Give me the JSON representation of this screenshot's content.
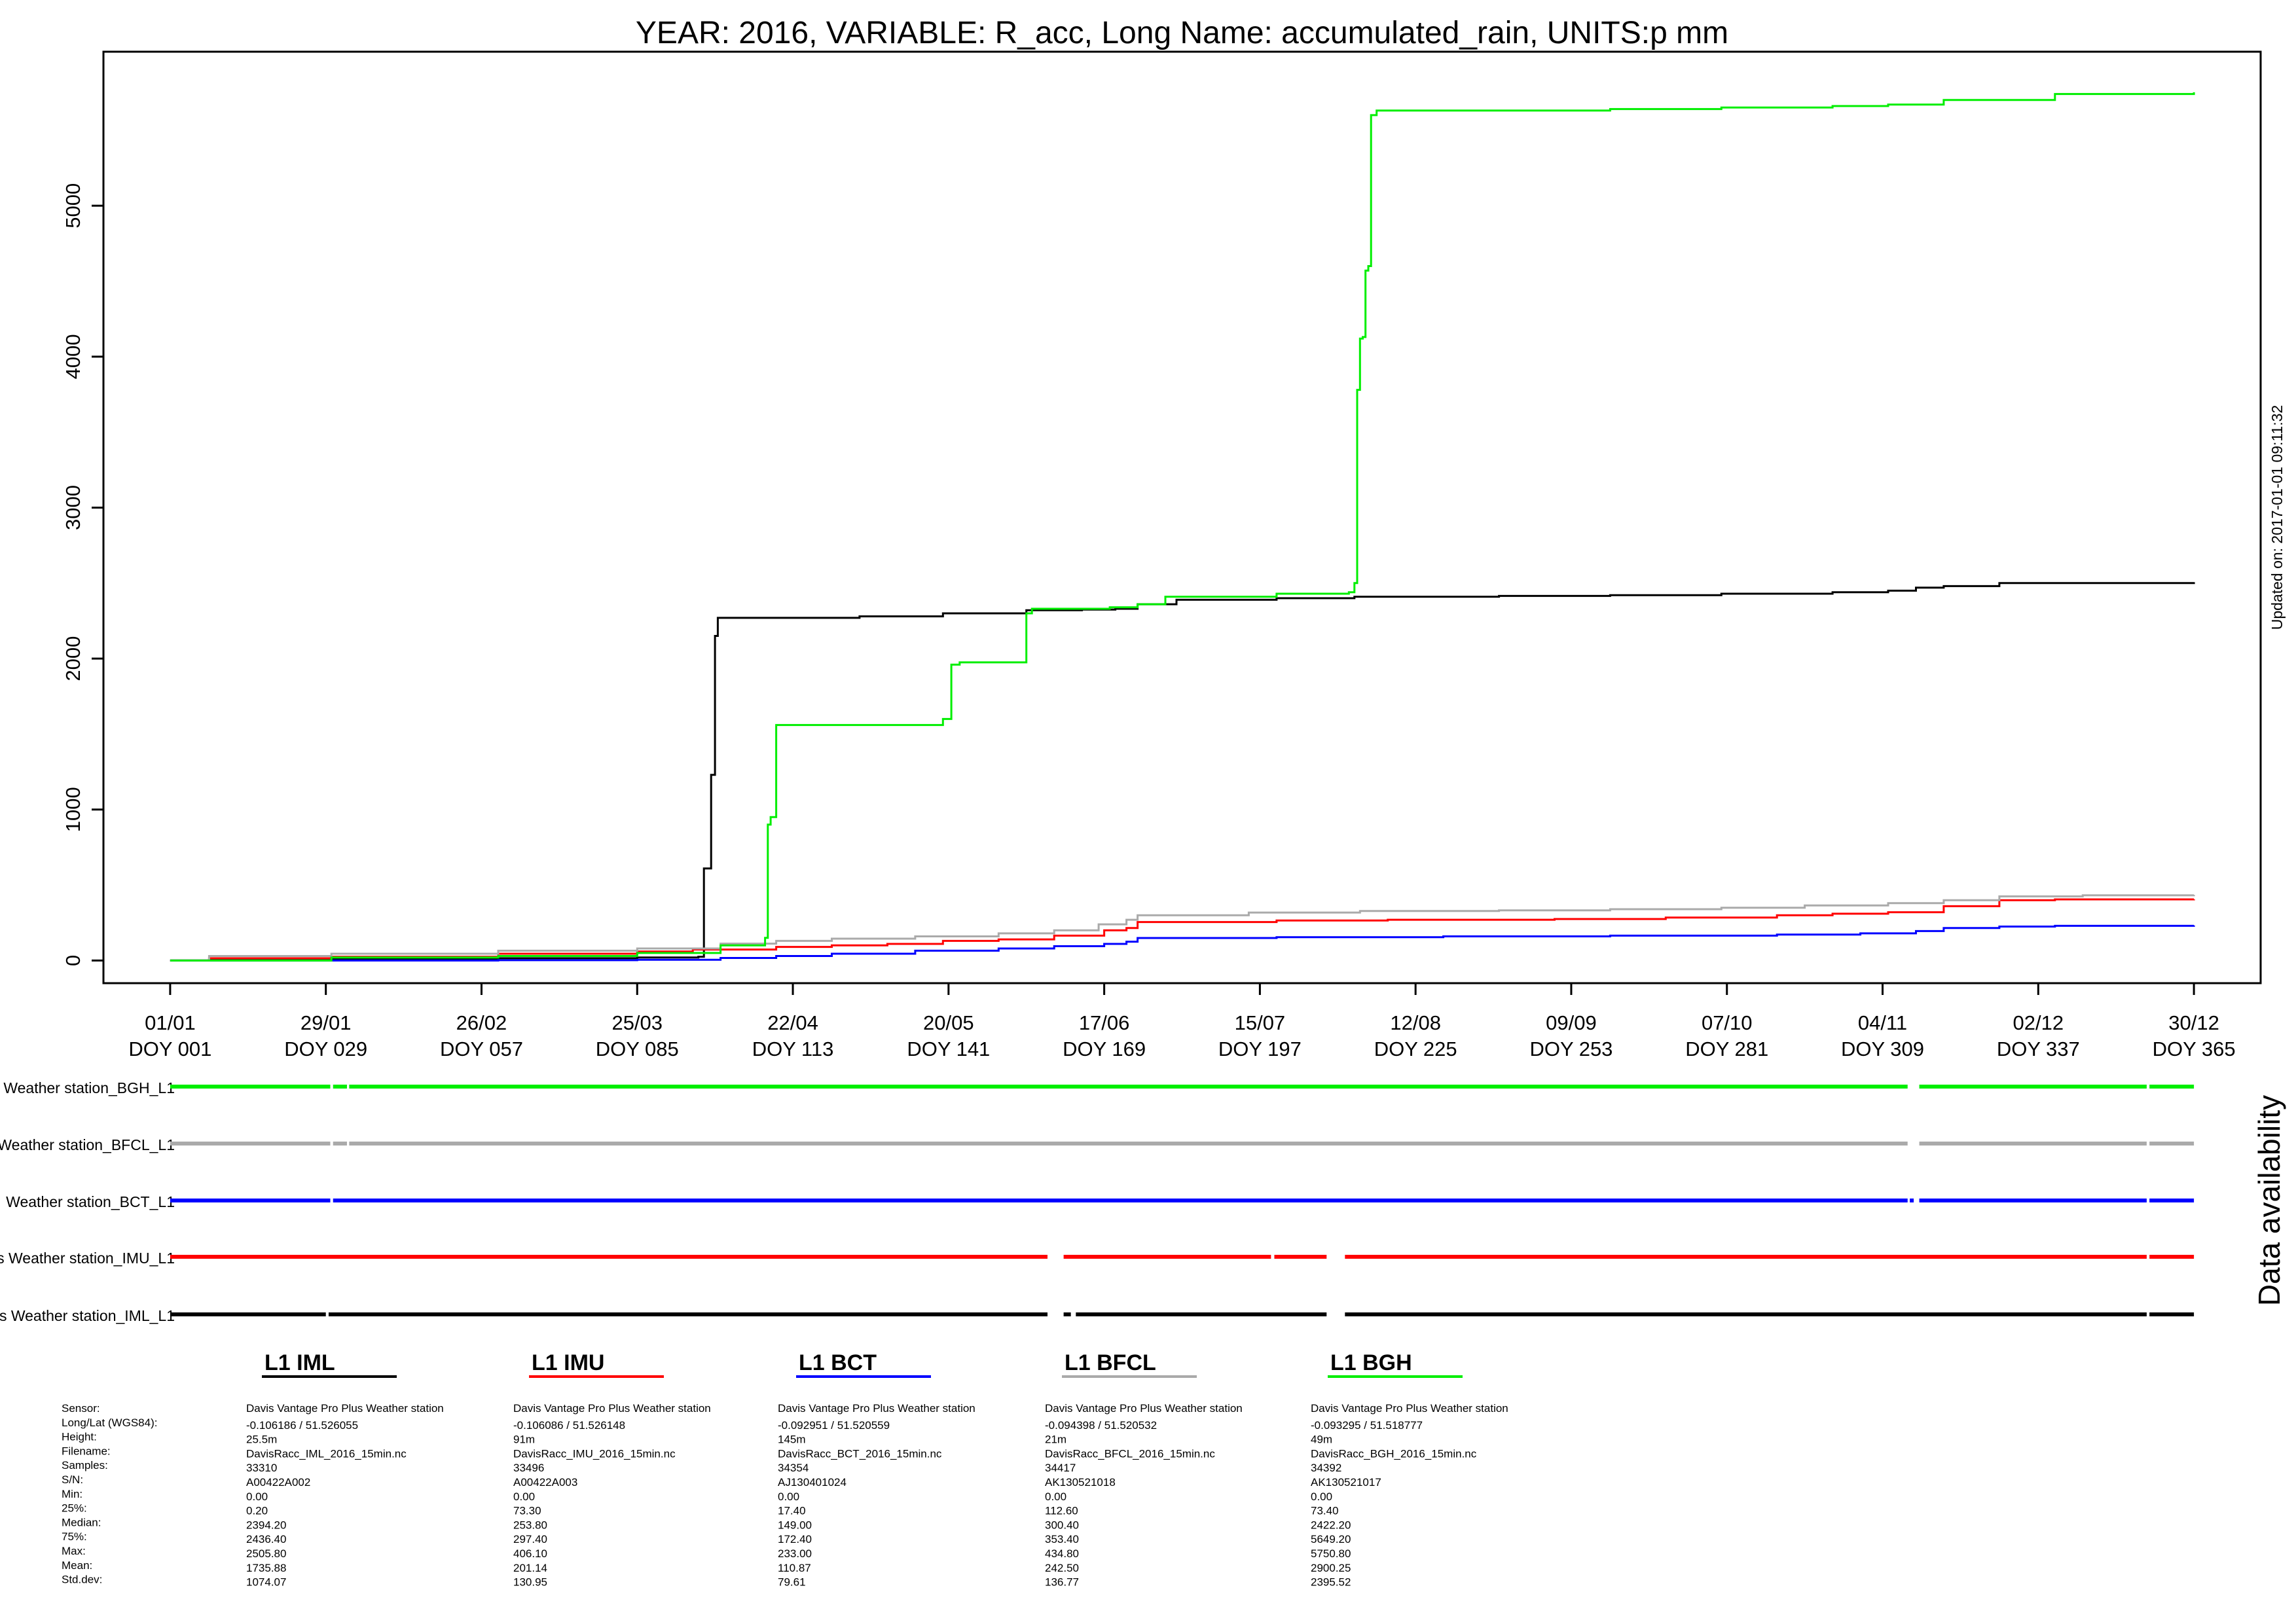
{
  "chart_data": {
    "type": "line",
    "title": "YEAR: 2016, VARIABLE: R_acc, Long Name: accumulated_rain, UNITS:p mm",
    "updated_label": "Updated on: 2017-01-01 09:11:32",
    "xlabel": "",
    "ylabel": "",
    "xlim": [
      -11,
      377
    ],
    "ylim": [
      -150,
      6020
    ],
    "y_ticks": [
      0,
      1000,
      2000,
      3000,
      4000,
      5000
    ],
    "x_ticks": [
      {
        "doy": 1,
        "date": "01/01",
        "label": "DOY 001"
      },
      {
        "doy": 29,
        "date": "29/01",
        "label": "DOY 029"
      },
      {
        "doy": 57,
        "date": "26/02",
        "label": "DOY 057"
      },
      {
        "doy": 85,
        "date": "25/03",
        "label": "DOY 085"
      },
      {
        "doy": 113,
        "date": "22/04",
        "label": "DOY 113"
      },
      {
        "doy": 141,
        "date": "20/05",
        "label": "DOY 141"
      },
      {
        "doy": 169,
        "date": "17/06",
        "label": "DOY 169"
      },
      {
        "doy": 197,
        "date": "15/07",
        "label": "DOY 197"
      },
      {
        "doy": 225,
        "date": "12/08",
        "label": "DOY 225"
      },
      {
        "doy": 253,
        "date": "09/09",
        "label": "DOY 253"
      },
      {
        "doy": 281,
        "date": "07/10",
        "label": "DOY 281"
      },
      {
        "doy": 309,
        "date": "04/11",
        "label": "DOY 309"
      },
      {
        "doy": 337,
        "date": "02/12",
        "label": "DOY 337"
      },
      {
        "doy": 365,
        "date": "30/12",
        "label": "DOY 365"
      }
    ],
    "series": [
      {
        "key": "IML",
        "name": "L1 IML",
        "color": "#000000",
        "x": [
          1,
          8,
          30,
          60,
          85,
          96,
          97,
          98,
          98.3,
          99,
          99.5,
          100,
          125,
          140,
          155,
          165,
          171,
          175,
          182,
          200,
          214,
          240,
          260,
          280,
          300,
          310,
          315,
          320,
          330,
          340,
          365
        ],
        "y": [
          0,
          5,
          10,
          15,
          20,
          25,
          610,
          610,
          1230,
          2150,
          2270,
          2270,
          2280,
          2300,
          2320,
          2325,
          2330,
          2360,
          2390,
          2400,
          2410,
          2415,
          2420,
          2430,
          2440,
          2450,
          2470,
          2480,
          2500,
          2500,
          2506
        ]
      },
      {
        "key": "IMU",
        "name": "L1 IMU",
        "color": "#ff0000",
        "x": [
          1,
          8,
          30,
          60,
          85,
          95,
          110,
          120,
          130,
          140,
          150,
          160,
          169,
          173,
          175,
          200,
          220,
          250,
          270,
          290,
          300,
          310,
          320,
          330,
          340,
          365
        ],
        "y": [
          0,
          15,
          25,
          45,
          60,
          73,
          90,
          100,
          110,
          130,
          140,
          165,
          200,
          215,
          255,
          265,
          270,
          275,
          285,
          300,
          310,
          320,
          360,
          400,
          405,
          406
        ]
      },
      {
        "key": "BCT",
        "name": "L1 BCT",
        "color": "#0000ff",
        "x": [
          1,
          60,
          85,
          100,
          110,
          120,
          135,
          150,
          160,
          169,
          173,
          175,
          200,
          230,
          260,
          290,
          305,
          315,
          320,
          330,
          340,
          365
        ],
        "y": [
          0,
          2,
          5,
          17,
          30,
          45,
          65,
          80,
          95,
          110,
          125,
          149,
          155,
          160,
          165,
          172,
          180,
          195,
          215,
          225,
          230,
          233
        ]
      },
      {
        "key": "BFCL",
        "name": "L1 BFCL",
        "color": "#aaaaaa",
        "x": [
          1,
          8,
          30,
          60,
          85,
          100,
          110,
          120,
          135,
          150,
          160,
          168,
          173,
          175,
          195,
          215,
          240,
          260,
          280,
          295,
          310,
          320,
          330,
          345,
          365
        ],
        "y": [
          0,
          30,
          45,
          65,
          80,
          112,
          130,
          145,
          160,
          180,
          200,
          240,
          270,
          300,
          318,
          328,
          332,
          340,
          350,
          365,
          380,
          400,
          425,
          432,
          435
        ]
      },
      {
        "key": "BGH",
        "name": "L1 BGH",
        "color": "#00ee00",
        "x": [
          1,
          30,
          60,
          85,
          100,
          108,
          108.5,
          109,
          110,
          111,
          140,
          141.5,
          143,
          155,
          156,
          170,
          175,
          180,
          200,
          213,
          214,
          214.5,
          215,
          215.5,
          216,
          216.5,
          217,
          218,
          225,
          260,
          280,
          300,
          310,
          320,
          340,
          365
        ],
        "y": [
          0,
          20,
          30,
          50,
          100,
          150,
          900,
          950,
          1560,
          1560,
          1600,
          1960,
          1975,
          2300,
          2330,
          2340,
          2360,
          2410,
          2430,
          2440,
          2500,
          3780,
          4120,
          4130,
          4570,
          4600,
          5600,
          5630,
          5630,
          5640,
          5650,
          5660,
          5670,
          5700,
          5740,
          5751
        ]
      }
    ]
  },
  "availability": {
    "title": "Data availability",
    "rows": [
      {
        "key": "BGH",
        "label": "Weather station_BGH_L1",
        "color": "#00ee00",
        "segments": [
          [
            1,
            29.8
          ],
          [
            30.3,
            32.8
          ],
          [
            33.2,
            313.5
          ],
          [
            315.6,
            356.5
          ],
          [
            357,
            365
          ]
        ]
      },
      {
        "key": "BFCL",
        "label": "Weather station_BFCL_L1",
        "color": "#aaaaaa",
        "segments": [
          [
            1,
            29.8
          ],
          [
            30.3,
            32.8
          ],
          [
            33.2,
            313.5
          ],
          [
            315.6,
            356.5
          ],
          [
            357,
            365
          ]
        ]
      },
      {
        "key": "BCT",
        "label": "Weather station_BCT_L1",
        "color": "#0000ff",
        "segments": [
          [
            1,
            29.8
          ],
          [
            30.3,
            313.5
          ],
          [
            313.9,
            314.6
          ],
          [
            315.6,
            356.5
          ],
          [
            357,
            365
          ]
        ]
      },
      {
        "key": "IMU",
        "label": "s Weather station_IMU_L1",
        "color": "#ff0000",
        "segments": [
          [
            1,
            158.8
          ],
          [
            161.7,
            199
          ],
          [
            199.6,
            209
          ],
          [
            212.3,
            356.5
          ],
          [
            357,
            365
          ]
        ]
      },
      {
        "key": "IML",
        "label": "s Weather station_IML_L1",
        "color": "#000000",
        "segments": [
          [
            1,
            29
          ],
          [
            29.5,
            158.8
          ],
          [
            161.7,
            163
          ],
          [
            163.9,
            209
          ],
          [
            212.3,
            356.5
          ],
          [
            357,
            365
          ]
        ]
      }
    ]
  },
  "legend": [
    {
      "key": "IML",
      "name": "L1 IML",
      "color": "#000000"
    },
    {
      "key": "IMU",
      "name": "L1 IMU",
      "color": "#ff0000"
    },
    {
      "key": "BCT",
      "name": "L1 BCT",
      "color": "#0000ff"
    },
    {
      "key": "BFCL",
      "name": "L1 BFCL",
      "color": "#aaaaaa"
    },
    {
      "key": "BGH",
      "name": "L1 BGH",
      "color": "#00ee00"
    }
  ],
  "stats": {
    "row_labels": [
      "Sensor:",
      "Long/Lat (WGS84):",
      "Height:",
      "Filename:",
      "Samples:",
      "S/N:",
      "Min:",
      "25%:",
      "Median:",
      "75%:",
      "Max:",
      "Mean:",
      "Std.dev:"
    ],
    "columns": [
      {
        "key": "IML",
        "values": [
          "Davis Vantage Pro Plus Weather station",
          "-0.106186 / 51.526055",
          "25.5m",
          "DavisRacc_IML_2016_15min.nc",
          "33310",
          "A00422A002",
          "0.00",
          "0.20",
          "2394.20",
          "2436.40",
          "2505.80",
          "1735.88",
          "1074.07"
        ]
      },
      {
        "key": "IMU",
        "values": [
          "Davis Vantage Pro Plus Weather station",
          "-0.106086 / 51.526148",
          "91m",
          "DavisRacc_IMU_2016_15min.nc",
          "33496",
          "A00422A003",
          "0.00",
          "73.30",
          "253.80",
          "297.40",
          "406.10",
          "201.14",
          "130.95"
        ]
      },
      {
        "key": "BCT",
        "values": [
          "Davis Vantage Pro Plus Weather station",
          "-0.092951 / 51.520559",
          "145m",
          "DavisRacc_BCT_2016_15min.nc",
          "34354",
          "AJ130401024",
          "0.00",
          "17.40",
          "149.00",
          "172.40",
          "233.00",
          "110.87",
          "79.61"
        ]
      },
      {
        "key": "BFCL",
        "values": [
          "Davis Vantage Pro Plus Weather station",
          "-0.094398 / 51.520532",
          "21m",
          "DavisRacc_BFCL_2016_15min.nc",
          "34417",
          "AK130521018",
          "0.00",
          "112.60",
          "300.40",
          "353.40",
          "434.80",
          "242.50",
          "136.77"
        ]
      },
      {
        "key": "BGH",
        "values": [
          "Davis Vantage Pro Plus Weather station",
          "-0.093295 / 51.518777",
          "49m",
          "DavisRacc_BGH_2016_15min.nc",
          "34392",
          "AK130521017",
          "0.00",
          "73.40",
          "2422.20",
          "5649.20",
          "5750.80",
          "2900.25",
          "2395.52"
        ]
      }
    ]
  }
}
